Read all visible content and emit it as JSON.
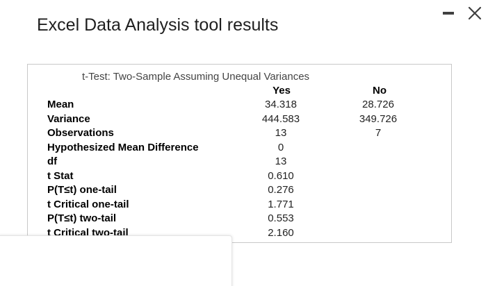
{
  "header": {
    "title": "Excel Data Analysis tool results"
  },
  "window_controls": {
    "minimize_icon": "minimize-icon",
    "close_icon": "close-icon"
  },
  "table": {
    "caption": "t-Test: Two-Sample Assuming Unequal Variances",
    "columns": [
      "Yes",
      "No"
    ],
    "rows": [
      {
        "label": "Mean",
        "yes": "34.318",
        "no": "28.726"
      },
      {
        "label": "Variance",
        "yes": "444.583",
        "no": "349.726"
      },
      {
        "label": "Observations",
        "yes": "13",
        "no": "7"
      },
      {
        "label": "Hypothesized Mean Difference",
        "yes": "0",
        "no": ""
      },
      {
        "label": "df",
        "yes": "13",
        "no": ""
      },
      {
        "label": "t Stat",
        "yes": "0.610",
        "no": ""
      },
      {
        "label": "P(T≤t) one-tail",
        "yes": "0.276",
        "no": ""
      },
      {
        "label": "t Critical one-tail",
        "yes": "1.771",
        "no": ""
      },
      {
        "label": "P(T≤t) two-tail",
        "yes": "0.553",
        "no": ""
      },
      {
        "label": "t Critical two-tail",
        "yes": "2.160",
        "no": ""
      }
    ]
  }
}
